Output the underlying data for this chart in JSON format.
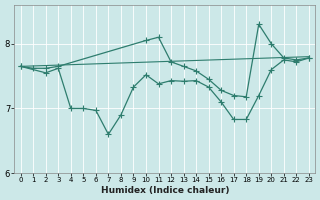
{
  "xlabel": "Humidex (Indice chaleur)",
  "background_color": "#cce8e8",
  "grid_color": "#ffffff",
  "line_color": "#2e7d6e",
  "xlim": [
    -0.5,
    23.5
  ],
  "ylim": [
    6,
    8.6
  ],
  "yticks": [
    6,
    7,
    8
  ],
  "xticks": [
    0,
    1,
    2,
    3,
    4,
    5,
    6,
    7,
    8,
    9,
    10,
    11,
    12,
    13,
    14,
    15,
    16,
    17,
    18,
    19,
    20,
    21,
    22,
    23
  ],
  "series": [
    {
      "x": [
        0,
        23
      ],
      "y": [
        7.65,
        7.8
      ],
      "marker": null,
      "linewidth": 0.8
    },
    {
      "x": [
        0,
        1,
        2,
        3,
        10,
        11,
        12,
        13,
        14,
        15,
        16,
        17,
        18,
        19,
        20,
        21,
        22,
        23
      ],
      "y": [
        7.65,
        7.62,
        7.62,
        7.65,
        8.05,
        8.1,
        7.72,
        7.65,
        7.58,
        7.45,
        7.28,
        7.2,
        7.18,
        8.3,
        8.0,
        7.78,
        7.75,
        7.78
      ],
      "marker": "+",
      "linewidth": 0.9
    },
    {
      "x": [
        0,
        2,
        3,
        4,
        5,
        6,
        7,
        8,
        9,
        10,
        11,
        12,
        13,
        14,
        15,
        16,
        17,
        18,
        19,
        20,
        21,
        22,
        23
      ],
      "y": [
        7.65,
        7.55,
        7.62,
        7.0,
        7.0,
        6.97,
        6.6,
        6.9,
        7.33,
        7.52,
        7.38,
        7.43,
        7.42,
        7.43,
        7.33,
        7.1,
        6.83,
        6.83,
        7.2,
        7.6,
        7.75,
        7.72,
        7.78
      ],
      "marker": "+",
      "linewidth": 0.9
    }
  ]
}
